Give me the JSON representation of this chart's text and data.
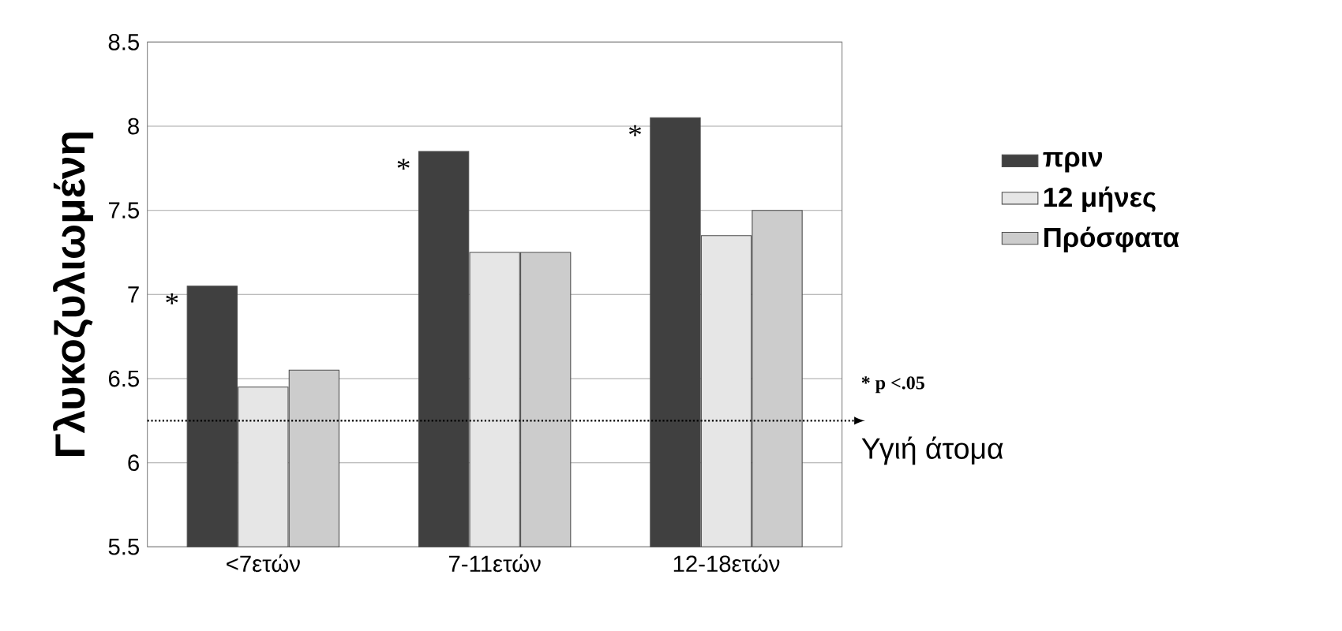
{
  "chart_data": {
    "type": "bar",
    "ylabel": "Γλυκοζυλιωμένη",
    "categories": [
      "<7ετών",
      "7-11ετών",
      "12-18ετών"
    ],
    "series": [
      {
        "name": "πριν",
        "color": "#404040",
        "values": [
          7.05,
          7.85,
          8.05
        ]
      },
      {
        "name": "12 μήνες",
        "color": "#e6e6e6",
        "values": [
          6.45,
          7.25,
          7.35
        ]
      },
      {
        "name": "Πρόσφατα",
        "color": "#cccccc",
        "values": [
          6.55,
          7.25,
          7.5
        ]
      }
    ],
    "ylim": [
      5.5,
      8.5
    ],
    "yticks": [
      5.5,
      6,
      6.5,
      7,
      7.5,
      8,
      8.5
    ],
    "grid": "y",
    "legend": "right",
    "ref_lines": [
      {
        "axis": "y",
        "value": 6.25,
        "label": "Υγιή άτομα",
        "line_style": "dotted"
      }
    ],
    "annotations": [
      "*",
      "*",
      "*",
      "* p <.05"
    ]
  }
}
